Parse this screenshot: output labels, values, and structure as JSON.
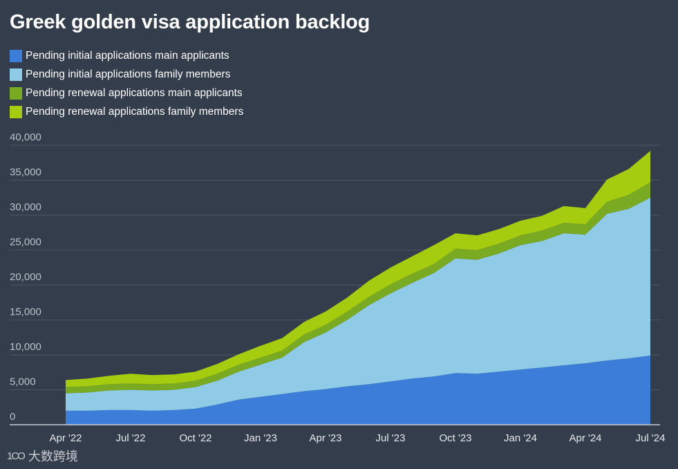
{
  "chart_data": {
    "type": "area",
    "stacked": true,
    "title": "Greek golden visa application backlog",
    "x": [
      "Apr '22",
      "May '22",
      "Jun '22",
      "Jul '22",
      "Aug '22",
      "Sep '22",
      "Oct '22",
      "Nov '22",
      "Dec '22",
      "Jan '23",
      "Feb '23",
      "Mar '23",
      "Apr '23",
      "May '23",
      "Jun '23",
      "Jul '23",
      "Aug '23",
      "Sep '23",
      "Oct '23",
      "Nov '23",
      "Dec '23",
      "Jan '24",
      "Feb '24",
      "Mar '24",
      "Apr '24",
      "May '24",
      "Jun '24",
      "Jul '24"
    ],
    "xticks": [
      "Apr '22",
      "Jul '22",
      "Oct '22",
      "Jan '23",
      "Apr '23",
      "Jul '23",
      "Oct '23",
      "Jan '24",
      "Apr '24",
      "Jul '24"
    ],
    "series": [
      {
        "name": "Pending initial applications main applicants",
        "color": "#3b7dd8",
        "values": [
          2000,
          2000,
          2100,
          2100,
          2000,
          2100,
          2300,
          2900,
          3600,
          4000,
          4400,
          4800,
          5100,
          5500,
          5800,
          6200,
          6600,
          6900,
          7400,
          7300,
          7600,
          7900,
          8200,
          8500,
          8800,
          9200,
          9500,
          9900
        ]
      },
      {
        "name": "Pending initial applications family members",
        "color": "#8fcbe6",
        "values": [
          2500,
          2600,
          2800,
          2900,
          2900,
          2900,
          3100,
          3400,
          4000,
          4600,
          5200,
          7000,
          8100,
          9500,
          11300,
          12600,
          13700,
          14800,
          16400,
          16300,
          16900,
          17800,
          18100,
          18900,
          18400,
          21000,
          21400,
          22600
        ]
      },
      {
        "name": "Pending renewal applications main applicants",
        "color": "#7aaa22",
        "values": [
          900,
          900,
          900,
          900,
          900,
          900,
          900,
          1000,
          1000,
          1000,
          1000,
          1100,
          1100,
          1200,
          1200,
          1300,
          1300,
          1300,
          1400,
          1400,
          1400,
          1400,
          1500,
          1500,
          1500,
          1700,
          2000,
          2200
        ]
      },
      {
        "name": "Pending renewal applications family members",
        "color": "#a6cc10",
        "values": [
          1000,
          1100,
          1200,
          1400,
          1300,
          1300,
          1300,
          1400,
          1500,
          1700,
          1800,
          1800,
          1900,
          2000,
          2300,
          2400,
          2500,
          2700,
          2200,
          2100,
          2100,
          2100,
          2100,
          2400,
          2300,
          3200,
          3700,
          4500
        ]
      }
    ],
    "ylim": [
      0,
      40000
    ],
    "yticks": [
      0,
      5000,
      10000,
      15000,
      20000,
      25000,
      30000,
      35000,
      40000
    ],
    "ytick_labels": [
      "0",
      "5,000",
      "10,000",
      "15,000",
      "20,000",
      "25,000",
      "30,000",
      "35,000",
      "40,000"
    ],
    "xlabel": "",
    "ylabel": "",
    "grid": true,
    "legend": "top-left"
  },
  "watermark": {
    "logo": "1CO",
    "text": "大数跨境"
  }
}
